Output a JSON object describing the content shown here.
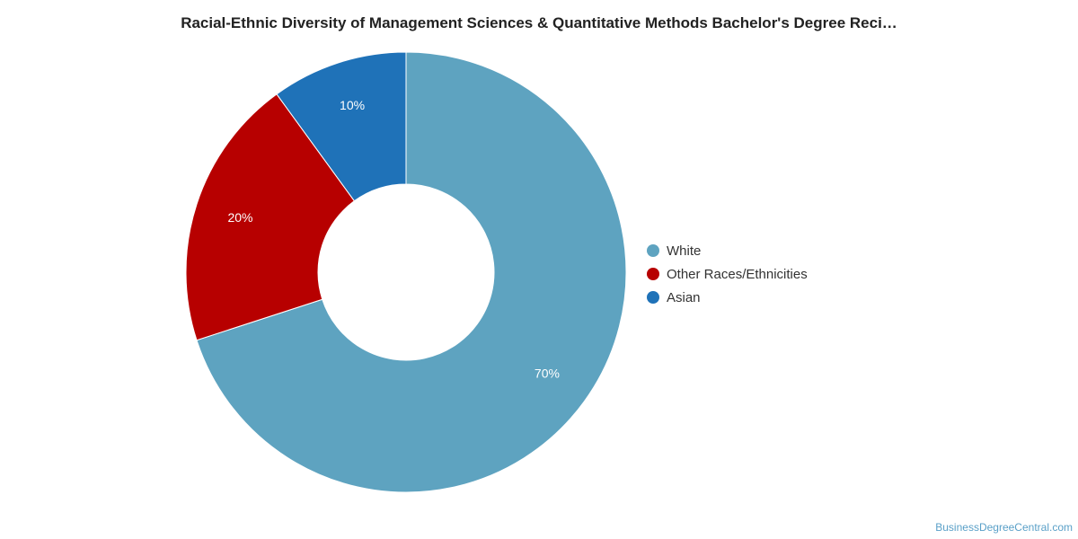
{
  "chart_data": {
    "type": "pie",
    "title": "Racial-Ethnic Diversity of Management Sciences & Quantitative Methods Bachelor's Degree Reci…",
    "donut": true,
    "legend_position": "right",
    "series": [
      {
        "name": "",
        "slices": [
          {
            "label": "White",
            "value": 70,
            "display": "70%",
            "color": "#5ea3c0"
          },
          {
            "label": "Other Races/Ethnicities",
            "value": 20,
            "display": "20%",
            "color": "#b70000"
          },
          {
            "label": "Asian",
            "value": 10,
            "display": "10%",
            "color": "#1f72b8"
          }
        ]
      }
    ]
  },
  "watermark": "BusinessDegreeCentral.com"
}
